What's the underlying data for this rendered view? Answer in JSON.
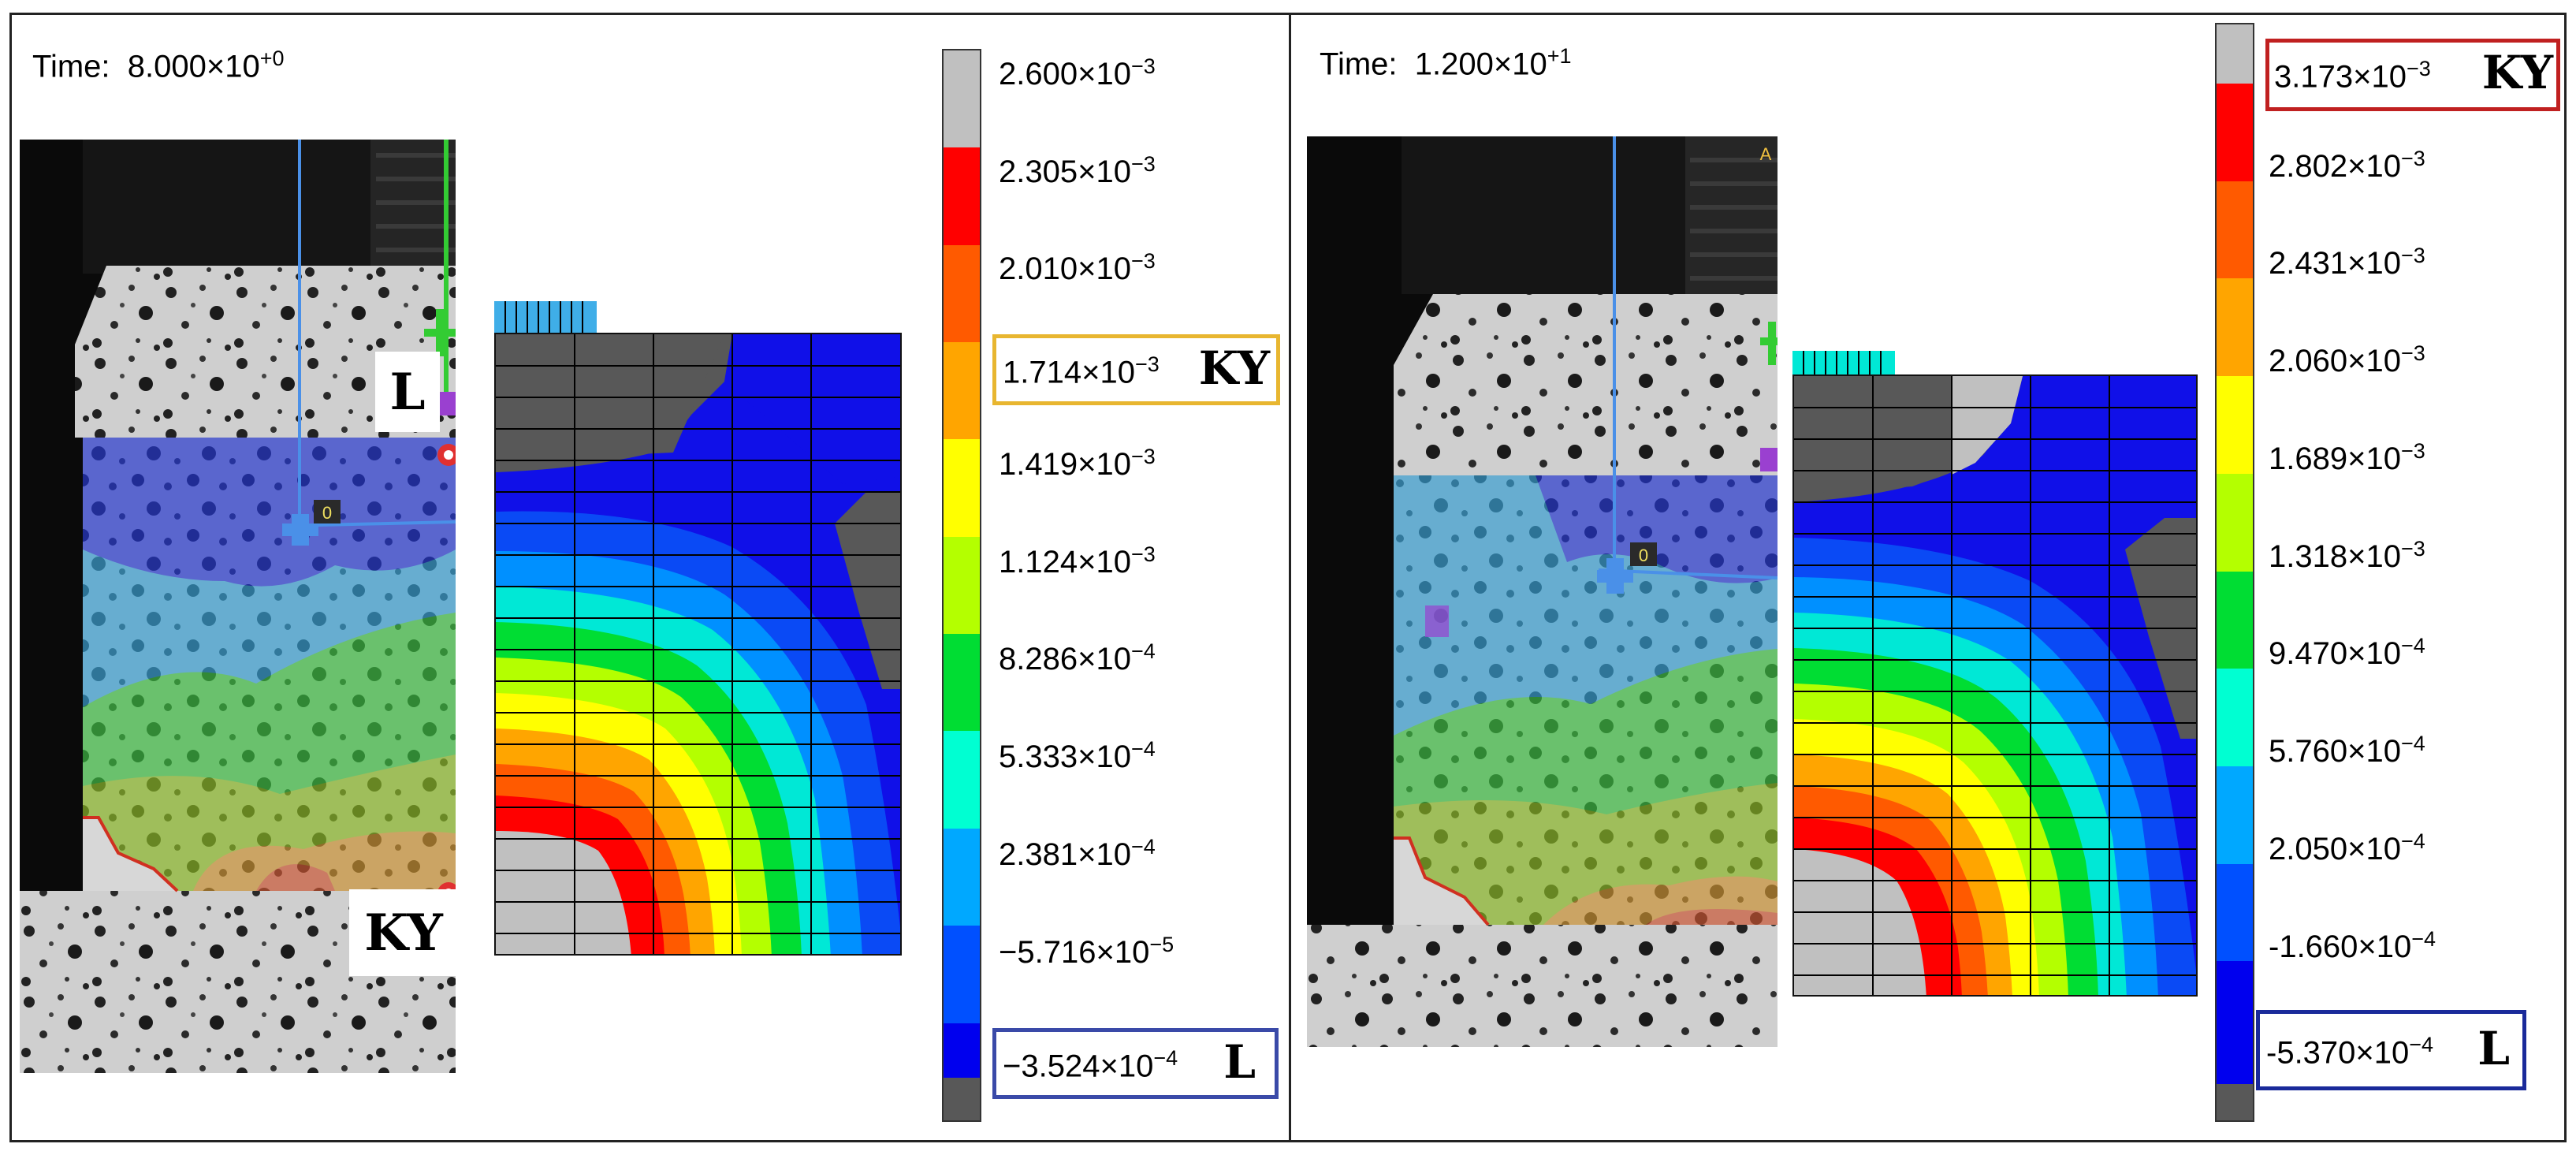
{
  "panels": {
    "left": {
      "time_prefix": "Time:",
      "time_mantissa": "8.000×10",
      "time_exponent": "+0",
      "legend_values": [
        {
          "m": "2.600×10",
          "e": "−3"
        },
        {
          "m": "2.305×10",
          "e": "−3"
        },
        {
          "m": "2.010×10",
          "e": "−3"
        },
        {
          "m": "1.714×10",
          "e": "−3"
        },
        {
          "m": "1.419×10",
          "e": "−3"
        },
        {
          "m": "1.124×10",
          "e": "−3"
        },
        {
          "m": "8.286×10",
          "e": "−4"
        },
        {
          "m": "5.333×10",
          "e": "−4"
        },
        {
          "m": "2.381×10",
          "e": "−4"
        },
        {
          "m": "−5.716×10",
          "e": "−5"
        },
        {
          "m": "−3.524×10",
          "e": "−4"
        }
      ],
      "highlight_top": {
        "index": 3,
        "tag": "KY",
        "color": "#e8b630"
      },
      "highlight_bottom": {
        "index": 10,
        "tag": "L",
        "color": "#3a4aa8"
      },
      "photo_labels": {
        "upper": "L",
        "lower": "KY"
      },
      "probe_marker": "0"
    },
    "right": {
      "time_prefix": "Time:",
      "time_mantissa": "1.200×10",
      "time_exponent": "+1",
      "legend_values": [
        {
          "m": "3.173×10",
          "e": "−3"
        },
        {
          "m": "2.802×10",
          "e": "−3"
        },
        {
          "m": "2.431×10",
          "e": "−3"
        },
        {
          "m": "2.060×10",
          "e": "−3"
        },
        {
          "m": "1.689×10",
          "e": "−3"
        },
        {
          "m": "1.318×10",
          "e": "−3"
        },
        {
          "m": "9.470×10",
          "e": "−4"
        },
        {
          "m": "5.760×10",
          "e": "−4"
        },
        {
          "m": "2.050×10",
          "e": "−4"
        },
        {
          "m": "-1.660×10",
          "e": "−4"
        },
        {
          "m": "-5.370×10",
          "e": "−4"
        }
      ],
      "highlight_top": {
        "index": 0,
        "tag": "KY",
        "color": "#c02020"
      },
      "highlight_bottom": {
        "index": 10,
        "tag": "L",
        "color": "#1a2a9a"
      },
      "probe_marker": "0",
      "corner_mark": "A"
    }
  },
  "colormap": [
    "#c0c0c0",
    "#ff0000",
    "#ff5a00",
    "#ffa500",
    "#ffff00",
    "#b4ff00",
    "#00dd33",
    "#00ffd2",
    "#00a8ff",
    "#0050ff",
    "#0000ee",
    "#585858"
  ]
}
